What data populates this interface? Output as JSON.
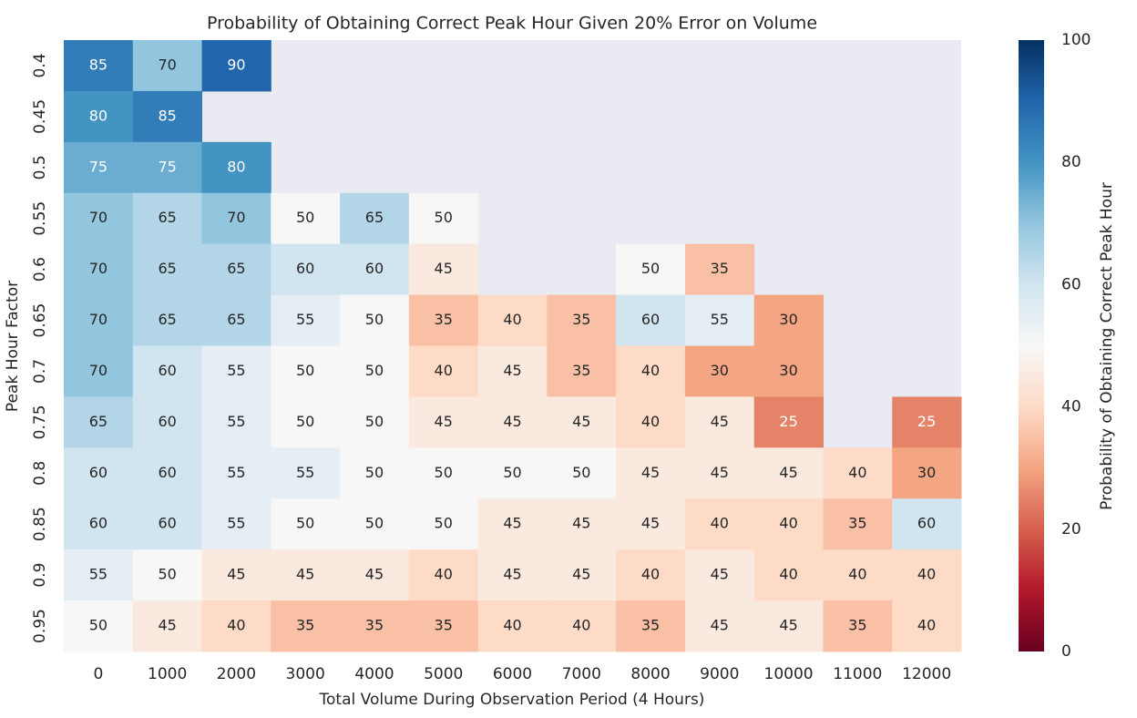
{
  "chart_data": {
    "type": "heatmap",
    "title": "Probability of Obtaining Correct Peak Hour Given 20% Error on Volume",
    "x_label": "Total Volume During Observation Period (4 Hours)",
    "y_label": "Peak Hour Factor",
    "x": [
      "0",
      "1000",
      "2000",
      "3000",
      "4000",
      "5000",
      "6000",
      "7000",
      "8000",
      "9000",
      "10000",
      "11000",
      "12000"
    ],
    "y": [
      "0.4",
      "0.45",
      "0.5",
      "0.55",
      "0.6",
      "0.65",
      "0.7",
      "0.75",
      "0.8",
      "0.85",
      "0.9",
      "0.95"
    ],
    "values": [
      [
        85,
        70,
        90,
        null,
        null,
        null,
        null,
        null,
        null,
        null,
        null,
        null,
        null
      ],
      [
        80,
        85,
        null,
        null,
        null,
        null,
        null,
        null,
        null,
        null,
        null,
        null,
        null
      ],
      [
        75,
        75,
        80,
        null,
        null,
        null,
        null,
        null,
        null,
        null,
        null,
        null,
        null
      ],
      [
        70,
        65,
        70,
        50,
        65,
        50,
        null,
        null,
        null,
        null,
        null,
        null,
        null
      ],
      [
        70,
        65,
        65,
        60,
        60,
        45,
        null,
        null,
        50,
        35,
        null,
        null,
        null
      ],
      [
        70,
        65,
        65,
        55,
        50,
        35,
        40,
        35,
        60,
        55,
        30,
        null,
        null
      ],
      [
        70,
        60,
        55,
        50,
        50,
        40,
        45,
        35,
        40,
        30,
        30,
        null,
        null
      ],
      [
        65,
        60,
        55,
        50,
        50,
        45,
        45,
        45,
        40,
        45,
        25,
        null,
        25
      ],
      [
        60,
        60,
        55,
        55,
        50,
        50,
        50,
        50,
        45,
        45,
        45,
        40,
        30
      ],
      [
        60,
        60,
        55,
        50,
        50,
        50,
        45,
        45,
        45,
        40,
        40,
        35,
        60
      ],
      [
        55,
        50,
        45,
        45,
        45,
        40,
        45,
        45,
        40,
        45,
        40,
        40,
        40
      ],
      [
        50,
        45,
        40,
        35,
        35,
        35,
        40,
        40,
        35,
        45,
        45,
        35,
        40
      ]
    ],
    "colormap": "RdBu",
    "colorbar_label": "Probability of Obtaining Correct Peak Hour",
    "zlim": [
      0,
      100
    ],
    "zticks": [
      0,
      20,
      40,
      60,
      80,
      100
    ]
  }
}
